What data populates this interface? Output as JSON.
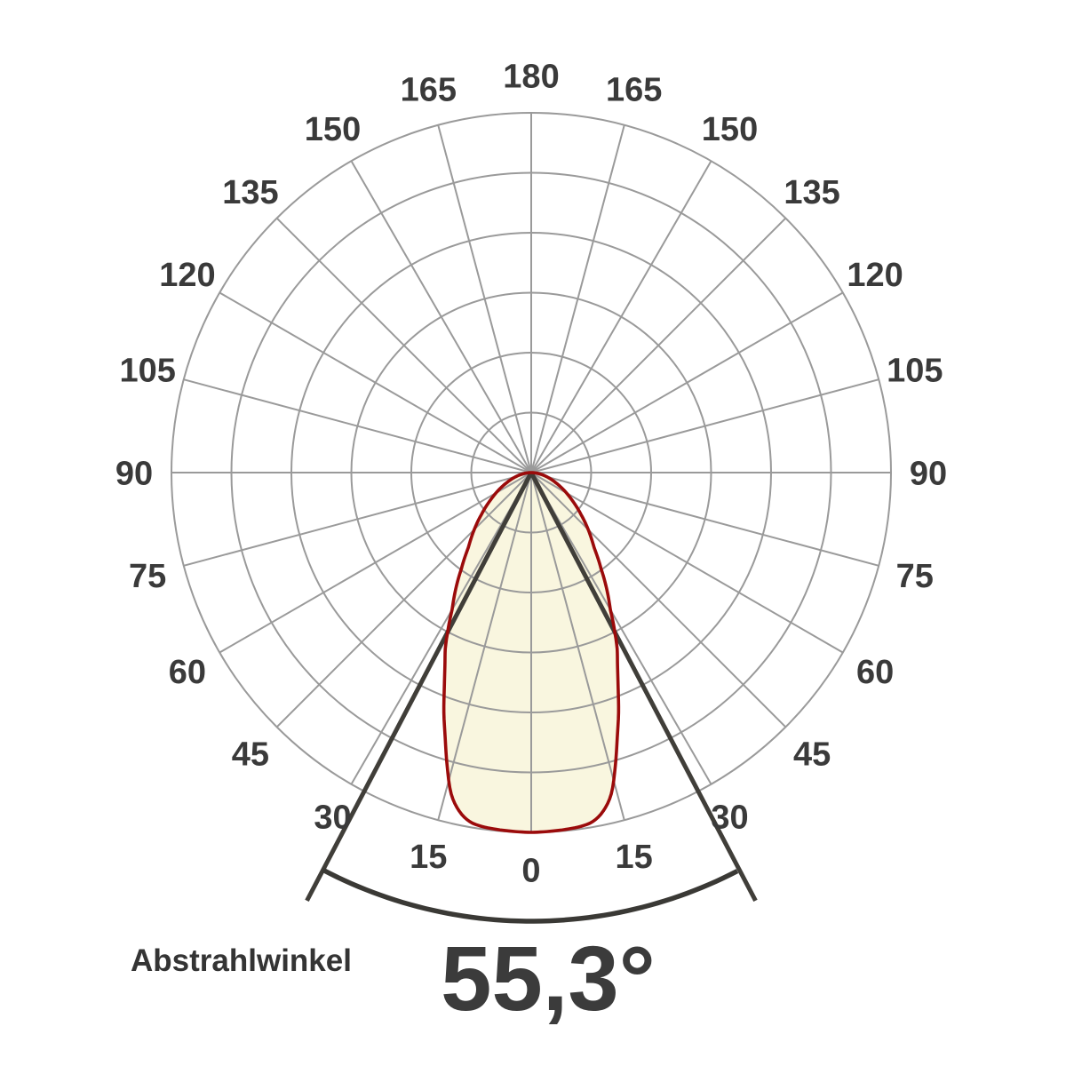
{
  "page": {
    "background": "#ffffff"
  },
  "caption": {
    "label": "Abstrahlwinkel",
    "value": "55,3°"
  },
  "chart_data": {
    "type": "polar-line",
    "description": "Photometric luminous intensity distribution curve (beam angle diagram)",
    "angle_unit": "degrees",
    "angle_labels": [
      0,
      15,
      30,
      45,
      60,
      75,
      90,
      105,
      120,
      135,
      150,
      165,
      180
    ],
    "label_sides": "both",
    "rings": 6,
    "spoke_step_deg": 15,
    "radial_range": [
      0,
      1.0
    ],
    "beam_angle_deg": 55.3,
    "beam_half_angle_deg": 27.65,
    "profile": [
      {
        "angle": 0,
        "rel_intensity": 1.0
      },
      {
        "angle": 5,
        "rel_intensity": 0.997
      },
      {
        "angle": 8,
        "rel_intensity": 0.993
      },
      {
        "angle": 10,
        "rel_intensity": 0.985
      },
      {
        "angle": 12,
        "rel_intensity": 0.962
      },
      {
        "angle": 14,
        "rel_intensity": 0.92
      },
      {
        "angle": 16,
        "rel_intensity": 0.848
      },
      {
        "angle": 18,
        "rel_intensity": 0.774
      },
      {
        "angle": 20,
        "rel_intensity": 0.71
      },
      {
        "angle": 22,
        "rel_intensity": 0.645
      },
      {
        "angle": 24,
        "rel_intensity": 0.59
      },
      {
        "angle": 26,
        "rel_intensity": 0.545
      },
      {
        "angle": 27.65,
        "rel_intensity": 0.5
      },
      {
        "angle": 30,
        "rel_intensity": 0.44
      },
      {
        "angle": 33,
        "rel_intensity": 0.385
      },
      {
        "angle": 36,
        "rel_intensity": 0.33
      },
      {
        "angle": 40,
        "rel_intensity": 0.272
      },
      {
        "angle": 45,
        "rel_intensity": 0.224
      },
      {
        "angle": 50,
        "rel_intensity": 0.18
      },
      {
        "angle": 56,
        "rel_intensity": 0.137
      },
      {
        "angle": 62,
        "rel_intensity": 0.102
      },
      {
        "angle": 68,
        "rel_intensity": 0.072
      },
      {
        "angle": 75,
        "rel_intensity": 0.045
      },
      {
        "angle": 82,
        "rel_intensity": 0.022
      },
      {
        "angle": 90,
        "rel_intensity": 0.0
      }
    ],
    "colors": {
      "curve": "#9b0b0b",
      "lobe_fill": "#f9f6df",
      "grid": "#9a9a9a",
      "beam_lines": "#403e39",
      "beam_arc": "#3a3935",
      "labels": "#3a3a3a"
    }
  }
}
